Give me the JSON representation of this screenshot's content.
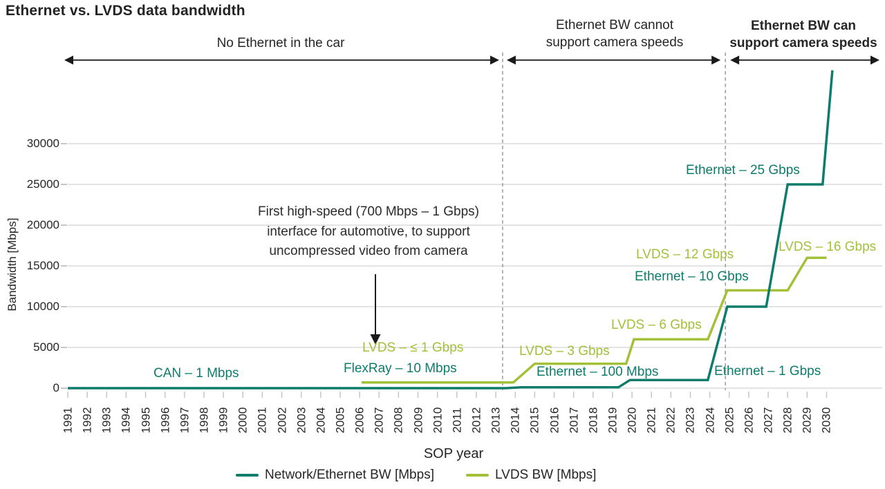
{
  "title": "Ethernet vs. LVDS data bandwidth",
  "regions": {
    "r1": {
      "line1": "No Ethernet in the car",
      "line2": ""
    },
    "r2": {
      "line1": "Ethernet BW cannot",
      "line2": "support camera speeds"
    },
    "r3": {
      "line1": "Ethernet BW can",
      "line2": "support camera speeds"
    }
  },
  "callout": {
    "line1": "First high-speed (700 Mbps – 1 Gbps)",
    "line2": "interface for automotive, to support",
    "line3": "uncompressed video from camera"
  },
  "colors": {
    "ethernet": "#0d7c6c",
    "lvds": "#a2c138",
    "grid": "#dcdcdc",
    "tick": "#c6c6c6",
    "dashed": "#9b9b9b",
    "arrow": "#1a1a1a",
    "text": "#262626"
  },
  "chart_data": {
    "type": "line",
    "title": "Ethernet vs. LVDS data bandwidth",
    "xlabel": "SOP year",
    "ylabel": "Bandwidth [Mbps]",
    "x_ticks": [
      1991,
      1992,
      1993,
      1994,
      1995,
      1996,
      1997,
      1998,
      1999,
      2000,
      2001,
      2002,
      2003,
      2004,
      2005,
      2006,
      2007,
      2008,
      2009,
      2010,
      2011,
      2012,
      2013,
      2014,
      2015,
      2016,
      2017,
      2018,
      2019,
      2020,
      2021,
      2022,
      2023,
      2024,
      2025,
      2026,
      2027,
      2028,
      2029,
      2030
    ],
    "y_ticks": [
      0,
      5000,
      10000,
      15000,
      20000,
      25000,
      30000
    ],
    "ylim": [
      0,
      30000
    ],
    "grid": "horizontal",
    "legend_position": "bottom",
    "region_dividers_x": [
      2013.35,
      2024.8
    ],
    "series": [
      {
        "name": "Network/Ethernet BW [Mbps]",
        "color_key": "ethernet",
        "levels_by_year": {
          "1991-2013": 1,
          "2014-2019": 100,
          "2020-2024": 1000,
          "2025-2027": 10000,
          "2028-2029": 25000,
          "2030": 39000
        },
        "points": [
          [
            1991,
            1
          ],
          [
            2013.5,
            1
          ],
          [
            2014.3,
            100
          ],
          [
            2019.3,
            100
          ],
          [
            2019.9,
            1000
          ],
          [
            2023.9,
            1000
          ],
          [
            2024.9,
            10000
          ],
          [
            2026.9,
            10000
          ],
          [
            2028.0,
            25000
          ],
          [
            2029.8,
            25000
          ],
          [
            2030.3,
            39000
          ]
        ]
      },
      {
        "name": "LVDS BW [Mbps]",
        "color_key": "lvds",
        "levels_by_year": {
          "2006-2013": 700,
          "2015-2019": 3000,
          "2020-2024": 6000,
          "2025-2028": 12000,
          "2029-2030": 16000
        },
        "points": [
          [
            2006.1,
            700
          ],
          [
            2013.9,
            700
          ],
          [
            2015.0,
            3000
          ],
          [
            2019.7,
            3000
          ],
          [
            2020.1,
            6000
          ],
          [
            2023.9,
            6000
          ],
          [
            2024.9,
            12000
          ],
          [
            2028.0,
            12000
          ],
          [
            2029.0,
            16000
          ],
          [
            2030.0,
            16000
          ]
        ]
      }
    ],
    "line_labels": {
      "can": "CAN – 1 Mbps",
      "flexray": "FlexRay – 10 Mbps",
      "lvds1": "LVDS – ≤ 1 Gbps",
      "lvds3": "LVDS – 3 Gbps",
      "eth100": "Ethernet – 100 Mbps",
      "lvds6": "LVDS – 6 Gbps",
      "lvds12": "LVDS – 12 Gbps",
      "eth10": "Ethernet – 10 Gbps",
      "eth25": "Ethernet – 25 Gbps",
      "lvds16": "LVDS – 16 Gbps",
      "eth1": "Ethernet – 1 Gbps"
    }
  }
}
